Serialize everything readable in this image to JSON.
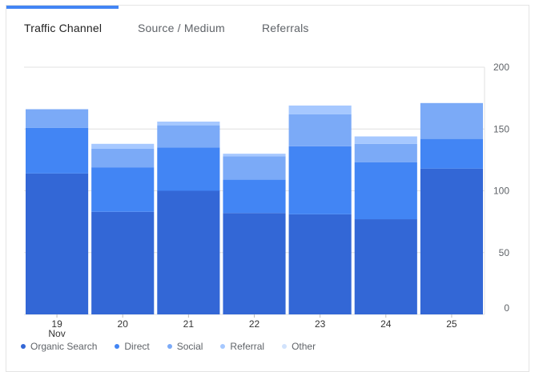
{
  "tabs": [
    {
      "label": "Traffic Channel",
      "active": true
    },
    {
      "label": "Source / Medium",
      "active": false
    },
    {
      "label": "Referrals",
      "active": false
    }
  ],
  "colors": {
    "organic": "#3367d6",
    "direct": "#4285f4",
    "social": "#7baaf7",
    "referral": "#a6c8ff",
    "other": "#d2e3fc",
    "accent": "#4285f4"
  },
  "chart_data": {
    "type": "bar",
    "stacked": true,
    "categories": [
      "19",
      "20",
      "21",
      "22",
      "23",
      "24",
      "25"
    ],
    "category_sublabels": [
      "Nov",
      "",
      "",
      "",
      "",
      "",
      ""
    ],
    "ylim": [
      0,
      200
    ],
    "yticks": [
      0,
      50,
      100,
      150,
      200
    ],
    "y_axis_side": "right",
    "grid": true,
    "legend_position": "bottom",
    "series": [
      {
        "name": "Organic Search",
        "color": "#3367d6",
        "values": [
          114,
          83,
          100,
          82,
          81,
          77,
          118
        ]
      },
      {
        "name": "Direct",
        "color": "#4285f4",
        "values": [
          37,
          36,
          35,
          27,
          55,
          46,
          24
        ]
      },
      {
        "name": "Social",
        "color": "#7baaf7",
        "values": [
          15,
          15,
          18,
          19,
          26,
          15,
          29
        ]
      },
      {
        "name": "Referral",
        "color": "#a6c8ff",
        "values": [
          0,
          4,
          3,
          2,
          7,
          6,
          0
        ]
      },
      {
        "name": "Other",
        "color": "#d2e3fc",
        "values": [
          0,
          0,
          0,
          0,
          0,
          0,
          0
        ]
      }
    ]
  }
}
